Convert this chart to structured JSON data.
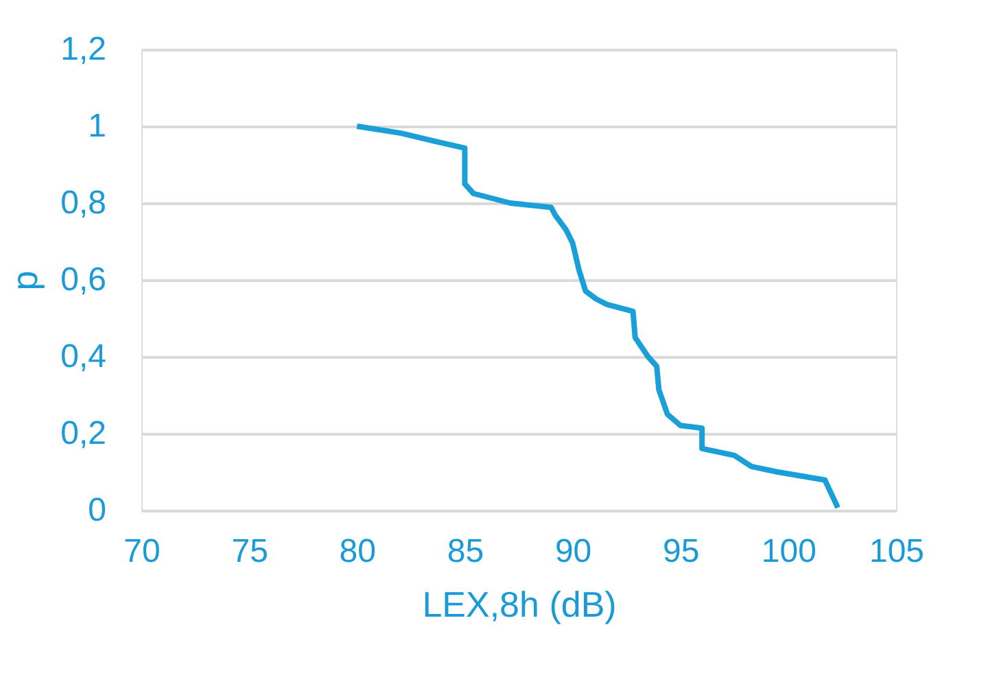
{
  "chart_data": {
    "type": "line",
    "xlabel": "LEX,8h (dB)",
    "ylabel": "p",
    "x": [
      80,
      82.04,
      83.6,
      85.0,
      85.0,
      85.4,
      87.1,
      89.0,
      89.2,
      89.7,
      90.0,
      90.3,
      90.6,
      91.1,
      91.6,
      92.8,
      92.9,
      93.5,
      93.9,
      94.0,
      94.4,
      95.0,
      96.0,
      96.0,
      97.5,
      98.3,
      99.5,
      101.7,
      102.0,
      102.3
    ],
    "series": [
      {
        "color": "#1a9fd9",
        "values": [
          1.0,
          0.982,
          0.961,
          0.943,
          0.85,
          0.825,
          0.8,
          0.789,
          0.768,
          0.73,
          0.696,
          0.625,
          0.571,
          0.55,
          0.536,
          0.518,
          0.45,
          0.4,
          0.375,
          0.314,
          0.25,
          0.221,
          0.214,
          0.161,
          0.143,
          0.114,
          0.1,
          0.079,
          0.043,
          0.007
        ]
      }
    ],
    "xlim": [
      70,
      105
    ],
    "xticks": [
      70,
      75,
      80,
      85,
      90,
      95,
      100,
      105
    ],
    "ylim": [
      0,
      1.2
    ],
    "yticks": [
      0,
      {
        "value": 0.2,
        "label": "0,2"
      },
      {
        "value": 0.4,
        "label": "0,4"
      },
      {
        "value": 0.6,
        "label": "0,6"
      },
      {
        "value": 0.8,
        "label": "0,8"
      },
      1,
      {
        "value": 1.2,
        "label": "1,2"
      }
    ],
    "grid": "y",
    "marker": "none",
    "line_style": "solid"
  }
}
